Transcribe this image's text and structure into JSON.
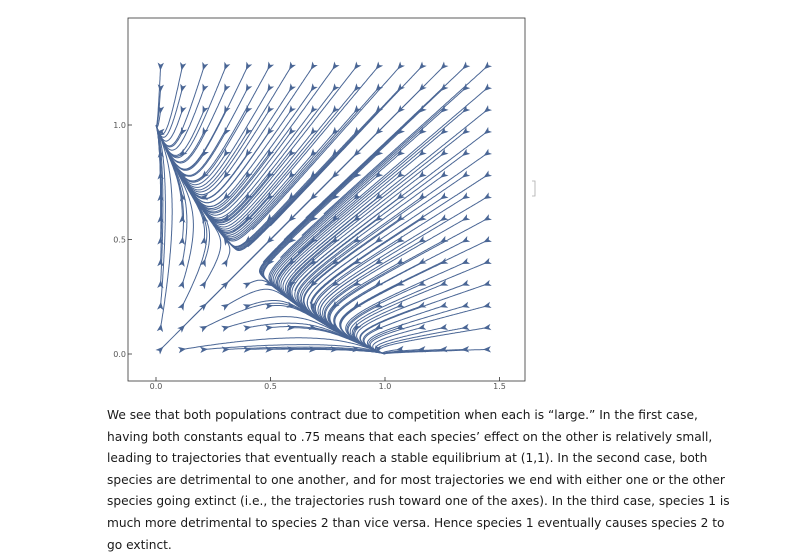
{
  "chart_data": {
    "type": "streamplot",
    "title": "",
    "xlabel": "",
    "ylabel": "",
    "xlim": [
      -0.05,
      1.6
    ],
    "ylim": [
      -0.05,
      1.4
    ],
    "x_ticks": [
      "0.0",
      "0.5",
      "1.0",
      "1.5"
    ],
    "y_ticks": [
      "0.0",
      "0.5",
      "1.0"
    ],
    "stable_equilibria": [
      [
        1.0,
        0.0
      ],
      [
        0.0,
        1.0
      ]
    ],
    "saddle_point": [
      0.6,
      0.6
    ],
    "stream_color": "#4a6695"
  },
  "caption": "We see that both populations contract due to competition when each is “large.” In the first case, having both constants equal to .75 means that each species’ effect on the other is relatively small, leading to trajectories that eventually reach a stable equilibrium at (1,1). In the second case, both species are detrimental to one another, and for most trajectories we end with either one or the other species going extinct (i.e., the trajectories rush toward one of the axes). In the third case, species 1 is much more detrimental to species 2 than vice versa. Hence species 1 eventually causes species 2 to go extinct."
}
